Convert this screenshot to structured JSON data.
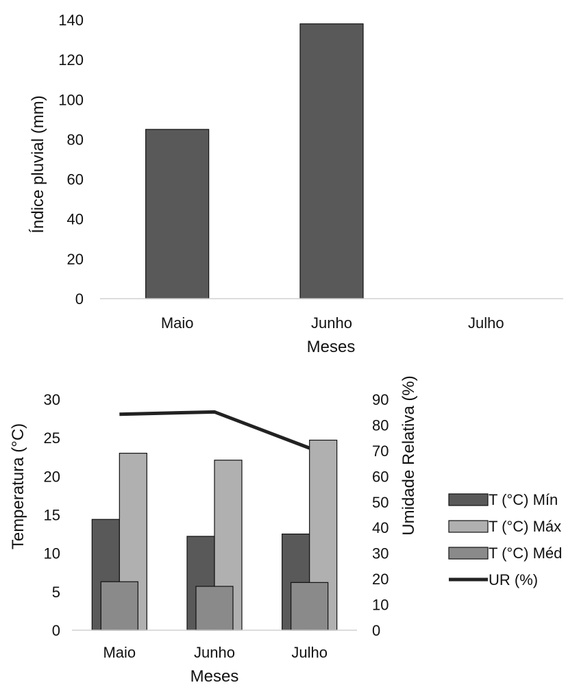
{
  "chart_data": [
    {
      "type": "bar",
      "title": "",
      "xlabel": "Meses",
      "ylabel": "Índice pluvial (mm)",
      "categories": [
        "Maio",
        "Junho",
        "Julho"
      ],
      "values": [
        85,
        138,
        0
      ],
      "ylim": [
        0,
        140
      ],
      "yticks": [
        0,
        20,
        40,
        60,
        80,
        100,
        120,
        140
      ],
      "grid": false,
      "colors": {
        "bar": "#595959"
      }
    },
    {
      "type": "bar",
      "title": "",
      "xlabel": "Meses",
      "ylabel": "Temperatura (°C)",
      "y2label": "Umidade Relativa (%)",
      "categories": [
        "Maio",
        "Junho",
        "Julho"
      ],
      "ylim": [
        0,
        30
      ],
      "yticks": [
        0,
        5,
        10,
        15,
        20,
        25,
        30
      ],
      "y2lim": [
        0,
        90
      ],
      "y2ticks": [
        0,
        10,
        20,
        30,
        40,
        50,
        60,
        70,
        80,
        90
      ],
      "grid": false,
      "legend_position": "right",
      "series": [
        {
          "name": "T (°C) Mín",
          "type": "bar",
          "axis": "left",
          "values": [
            14.4,
            12.2,
            12.5
          ],
          "color": "#595959"
        },
        {
          "name": "T (°C) Máx",
          "type": "bar",
          "axis": "left",
          "values": [
            23.0,
            22.1,
            24.7
          ],
          "color": "#b0b0b0"
        },
        {
          "name": "T (°C) Méd",
          "type": "bar",
          "axis": "left",
          "values": [
            6.3,
            5.7,
            6.2
          ],
          "color": "#8a8a8a"
        },
        {
          "name": "UR (%)",
          "type": "line",
          "axis": "right",
          "values": [
            84.2,
            85.1,
            71.0
          ],
          "color": "#222222"
        }
      ]
    }
  ]
}
